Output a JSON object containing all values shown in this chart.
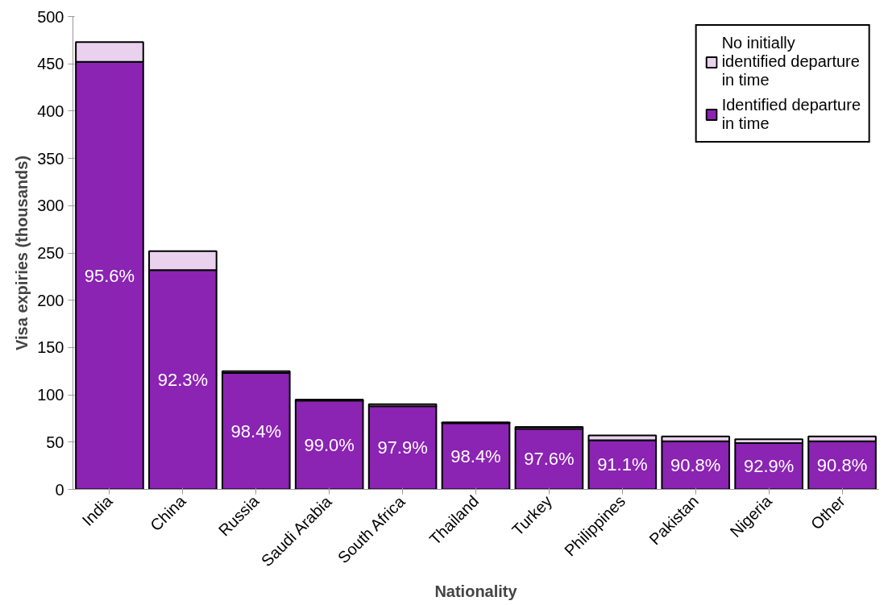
{
  "chart_data": {
    "type": "bar",
    "stacked": true,
    "xlabel": "Nationality",
    "ylabel": "Visa expiries (thousands)",
    "categories": [
      "India",
      "China",
      "Russia",
      "Saudi Arabia",
      "South Africa",
      "Thailand",
      "Turkey",
      "Philippines",
      "Pakistan",
      "Nigeria",
      "Other"
    ],
    "series": [
      {
        "name": "Identified departure in time",
        "color": "#8b23b3",
        "values": [
          452,
          232,
          123,
          94,
          88,
          70,
          64,
          52,
          51,
          49,
          51
        ]
      },
      {
        "name": "No initially identified departure in time",
        "color": "#ead2ef",
        "values": [
          21,
          20,
          2,
          1,
          2,
          1,
          2,
          5,
          5,
          4,
          5
        ]
      }
    ],
    "annotations": [
      "95.6%",
      "92.3%",
      "98.4%",
      "99.0%",
      "97.9%",
      "98.4%",
      "97.6%",
      "91.1%",
      "90.8%",
      "92.9%",
      "90.8%"
    ],
    "ylim": [
      0,
      500
    ],
    "yticks": [
      0,
      50,
      100,
      150,
      200,
      250,
      300,
      350,
      400,
      450,
      500
    ],
    "grid": false,
    "legend": "top right"
  }
}
